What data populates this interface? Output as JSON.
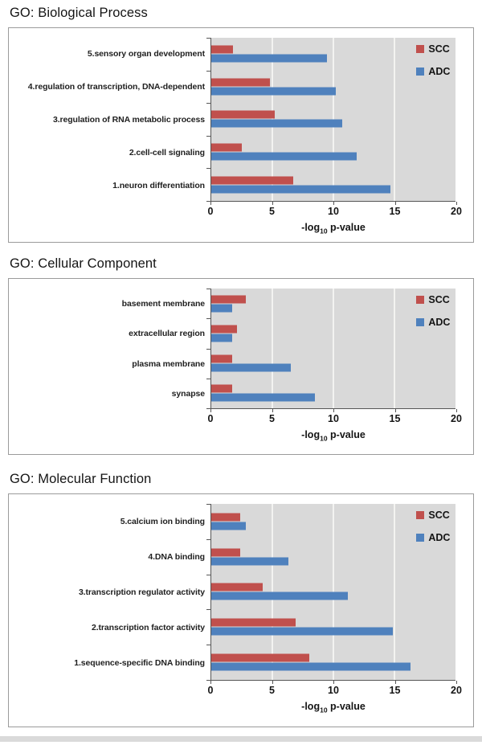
{
  "chart_data": [
    {
      "type": "bar",
      "orientation": "horizontal",
      "title": "GO: Biological Process",
      "categories": [
        "5.sensory organ development",
        "4.regulation of transcription, DNA-dependent",
        "3.regulation of RNA metabolic process",
        "2.cell-cell signaling",
        "1.neuron differentiation"
      ],
      "series": [
        {
          "name": "SCC",
          "color": "#C0504D",
          "values": [
            1.8,
            4.8,
            5.2,
            2.5,
            6.7
          ]
        },
        {
          "name": "ADC",
          "color": "#4F81BD",
          "values": [
            9.5,
            10.2,
            10.7,
            11.9,
            14.7
          ]
        }
      ],
      "xlabel": "-log10 p-value",
      "xlabel_parts": {
        "prefix": "-log",
        "sub": "10",
        "suffix": " p-value"
      },
      "xlim": [
        0,
        20
      ],
      "xticks": [
        0,
        5,
        10,
        15,
        20
      ],
      "legend_position": "top-right",
      "legend_entries": [
        "SCC",
        "ADC"
      ],
      "plot_bg": "#D9D9D9",
      "gridline_color": "#F3F3F1",
      "grid": "vertical"
    },
    {
      "type": "bar",
      "orientation": "horizontal",
      "title": "GO: Cellular Component",
      "categories": [
        "basement membrane",
        "extracellular region",
        "plasma membrane",
        "synapse"
      ],
      "series": [
        {
          "name": "SCC",
          "color": "#C0504D",
          "values": [
            2.8,
            2.1,
            1.7,
            1.7
          ]
        },
        {
          "name": "ADC",
          "color": "#4F81BD",
          "values": [
            1.7,
            1.7,
            6.5,
            8.5
          ]
        }
      ],
      "xlabel": "-log10 p-value",
      "xlabel_parts": {
        "prefix": "-log",
        "sub": "10",
        "suffix": " p-value"
      },
      "xlim": [
        0,
        20
      ],
      "xticks": [
        0,
        5,
        10,
        15,
        20
      ],
      "legend_position": "top-right",
      "legend_entries": [
        "SCC",
        "ADC"
      ],
      "plot_bg": "#D9D9D9",
      "gridline_color": "#F3F3F1",
      "grid": "vertical"
    },
    {
      "type": "bar",
      "orientation": "horizontal",
      "title": "GO: Molecular Function",
      "categories": [
        "5.calcium ion binding",
        "4.DNA binding",
        "3.transcription regulator activity",
        "2.transcription factor activity",
        "1.sequence-specific DNA binding"
      ],
      "series": [
        {
          "name": "SCC",
          "color": "#C0504D",
          "values": [
            2.4,
            2.4,
            4.2,
            6.9,
            8.0
          ]
        },
        {
          "name": "ADC",
          "color": "#4F81BD",
          "values": [
            2.8,
            6.3,
            11.2,
            14.9,
            16.3
          ]
        }
      ],
      "xlabel": "-log10 p-value",
      "xlabel_parts": {
        "prefix": "-log",
        "sub": "10",
        "suffix": " p-value"
      },
      "xlim": [
        0,
        20
      ],
      "xticks": [
        0,
        5,
        10,
        15,
        20
      ],
      "legend_position": "top-right",
      "legend_entries": [
        "SCC",
        "ADC"
      ],
      "plot_bg": "#D9D9D9",
      "gridline_color": "#F3F3F1",
      "grid": "vertical"
    }
  ]
}
